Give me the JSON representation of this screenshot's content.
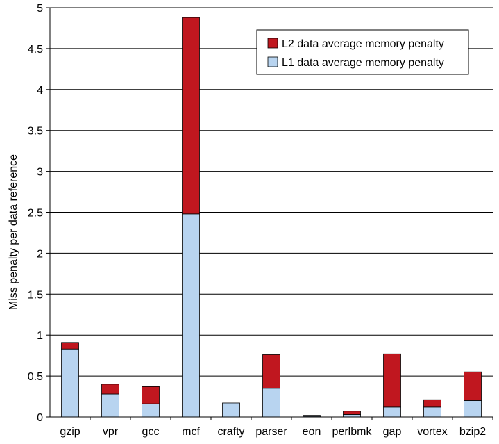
{
  "chart_data": {
    "type": "bar",
    "stacked": true,
    "categories": [
      "gzip",
      "vpr",
      "gcc",
      "mcf",
      "crafty",
      "parser",
      "eon",
      "perlbmk",
      "gap",
      "vortex",
      "bzip2"
    ],
    "series": [
      {
        "name": "L1 data average memory penalty",
        "color": "#b8d4f0",
        "values": [
          0.83,
          0.28,
          0.16,
          2.48,
          0.17,
          0.35,
          0.01,
          0.03,
          0.12,
          0.12,
          0.2
        ]
      },
      {
        "name": "L2 data average memory penalty",
        "color": "#c0171f",
        "values": [
          0.08,
          0.12,
          0.21,
          2.4,
          0.0,
          0.41,
          0.01,
          0.04,
          0.65,
          0.09,
          0.35
        ]
      }
    ],
    "title": "",
    "xlabel": "",
    "ylabel": "Miss penalty per data reference",
    "ylim": [
      0,
      5
    ],
    "yticks": [
      "0",
      "0.5",
      "1",
      "1.5",
      "2",
      "2.5",
      "3",
      "3.5",
      "4",
      "4.5",
      "5"
    ],
    "grid": true,
    "legend_placement": "top-right",
    "legend_order": [
      "L2 data average memory penalty",
      "L1 data average memory penalty"
    ]
  }
}
